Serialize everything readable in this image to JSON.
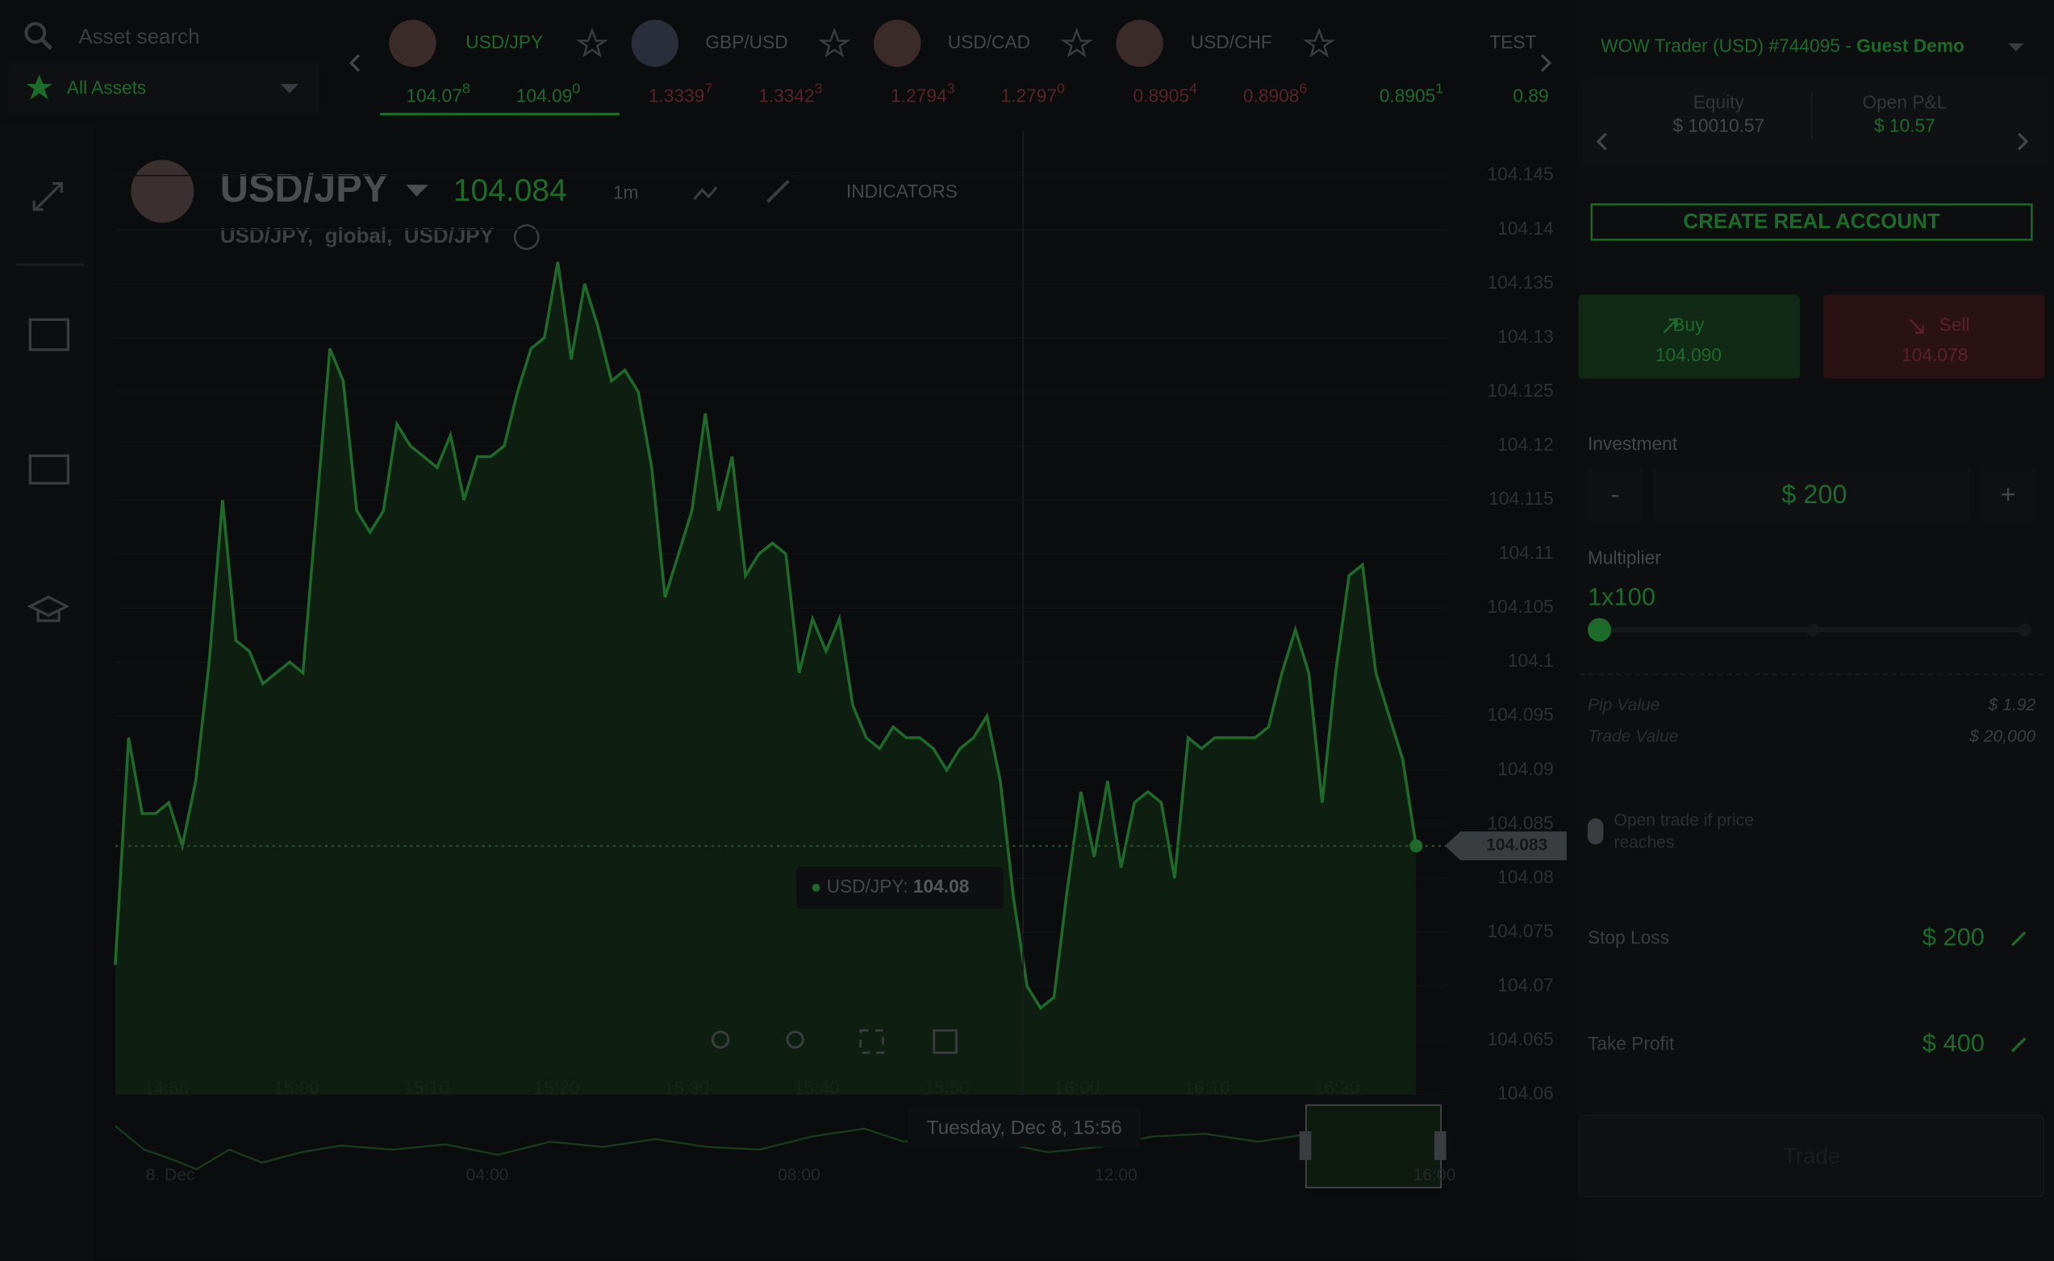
{
  "search_placeholder": "Asset search",
  "asset_filter": "All Assets",
  "tabs": [
    {
      "symbol": "USD/JPY",
      "bid": "104.07",
      "bid_sup": "8",
      "ask": "104.09",
      "ask_sup": "0"
    },
    {
      "symbol": "GBP/USD",
      "bid": "1.3339",
      "bid_sup": "7",
      "ask": "1.3342",
      "ask_sup": "3"
    },
    {
      "symbol": "USD/CAD",
      "bid": "1.2794",
      "bid_sup": "3",
      "ask": "1.2797",
      "ask_sup": "0"
    },
    {
      "symbol": "USD/CHF",
      "bid": "0.8905",
      "bid_sup": "4",
      "ask": "0.8908",
      "ask_sup": "6"
    },
    {
      "symbol": "TEST",
      "bid": "0.8905",
      "bid_sup": "1",
      "ask": "0.89"
    }
  ],
  "account": {
    "name": "WOW Trader (USD) #744095 - ",
    "mode": "Guest Demo",
    "equity_label": "Equity",
    "equity": "$ 10010.57",
    "pnl_label": "Open P&L",
    "pnl": "$ 10.57",
    "create_button": "CREATE REAL ACCOUNT"
  },
  "trade": {
    "buy": "Buy",
    "buy_price": "104.090",
    "sell": "Sell",
    "sell_price": "104.078",
    "investment_label": "Investment",
    "minus": "-",
    "amount": "$ 200",
    "plus": "+",
    "multiplier_label": "Multiplier",
    "multiplier": "1x100",
    "pip_value_label": "Pip Value",
    "pip_value": "$ 1.92",
    "trade_value_label": "Trade Value",
    "trade_value": "$ 20,000",
    "open_if_line1": "Open trade if price",
    "open_if_line2": "reaches",
    "stop_loss_label": "Stop Loss",
    "stop_loss": "$ 200",
    "take_profit_label": "Take Profit",
    "take_profit": "$ 400",
    "trade_button": "Trade"
  },
  "chart_header": {
    "symbol": "USD/JPY",
    "price": "104.084",
    "interval": "1m",
    "indicators": "INDICATORS",
    "subtitle": "USD/JPY,  global,  USD/JPY"
  },
  "chart_data": {
    "type": "line",
    "series": [
      {
        "name": "USD/JPY",
        "color": "#1f6a2a",
        "values": [
          104.072,
          104.093,
          104.086,
          104.086,
          104.087,
          104.083,
          104.089,
          104.1,
          104.115,
          104.102,
          104.101,
          104.098,
          104.099,
          104.1,
          104.099,
          104.114,
          104.129,
          104.126,
          104.114,
          104.112,
          104.114,
          104.122,
          104.12,
          104.119,
          104.118,
          104.121,
          104.115,
          104.119,
          104.119,
          104.12,
          104.125,
          104.129,
          104.13,
          104.137,
          104.128,
          104.135,
          104.131,
          104.126,
          104.127,
          104.125,
          104.118,
          104.106,
          104.11,
          104.114,
          104.123,
          104.114,
          104.119,
          104.108,
          104.11,
          104.111,
          104.11,
          104.099,
          104.104,
          104.101,
          104.104,
          104.096,
          104.093,
          104.092,
          104.094,
          104.093,
          104.093,
          104.092,
          104.09,
          104.092,
          104.093,
          104.095,
          104.089,
          104.078,
          104.07,
          104.068,
          104.069,
          104.079,
          104.088,
          104.082,
          104.089,
          104.081,
          104.087,
          104.088,
          104.087,
          104.08,
          104.093,
          104.092,
          104.093,
          104.093,
          104.093,
          104.093,
          104.094,
          104.099,
          104.103,
          104.099,
          104.087,
          104.099,
          104.108,
          104.109,
          104.099,
          104.095,
          104.091,
          104.083
        ]
      }
    ],
    "x_labels": [
      "14:50",
      "15:00",
      "15:10",
      "15:20",
      "15:30",
      "15:40",
      "15:50",
      "16:00",
      "16:10",
      "16:20"
    ],
    "ylim": [
      104.06,
      104.148
    ],
    "yticks": [
      104.145,
      104.14,
      104.135,
      104.13,
      104.125,
      104.12,
      104.115,
      104.11,
      104.105,
      104.1,
      104.095,
      104.09,
      104.085,
      104.08,
      104.075,
      104.07,
      104.065,
      104.06
    ],
    "last_value": 104.083,
    "tooltip_name": "USD/JPY: ",
    "tooltip_value": "104.08",
    "crosshair_label": "Tuesday, Dec 8, 15:56",
    "navigator_labels": [
      "8. Dec",
      "04:00",
      "08:00",
      "12:00",
      "16:00"
    ]
  }
}
